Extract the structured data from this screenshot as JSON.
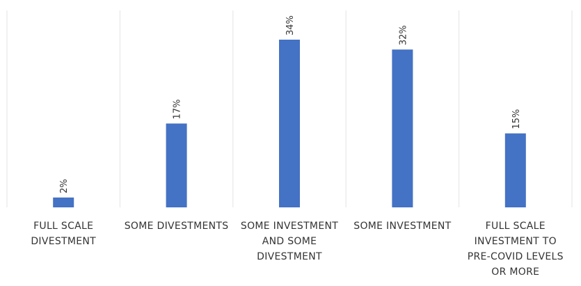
{
  "chart_data": {
    "type": "bar",
    "categories": [
      "FULL SCALE DIVESTMENT",
      "SOME DIVESTMENTS",
      "SOME INVESTMENT AND SOME DIVESTMENT",
      "SOME INVESTMENT",
      "FULL SCALE INVESTMENT TO PRE-COVID LEVELS OR MORE"
    ],
    "values": [
      2,
      17,
      34,
      32,
      15
    ],
    "value_labels": [
      "2%",
      "17%",
      "34%",
      "32%",
      "15%"
    ],
    "color": "#4472c4"
  }
}
